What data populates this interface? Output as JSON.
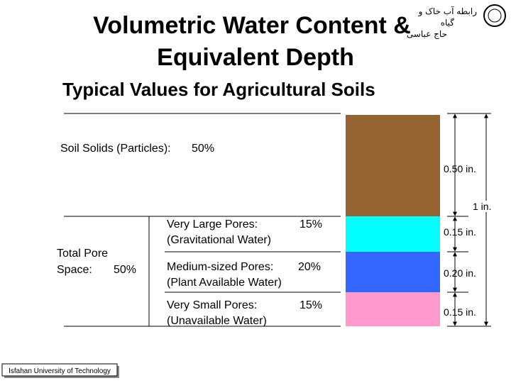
{
  "header": {
    "title_lines": [
      "Volumetric Water Content &",
      "Equivalent Depth"
    ],
    "subtitle": "Typical Values for Agricultural Soils",
    "persian_lines": [
      "رابطه آب خاک و",
      "گیاه",
      "حاج عباسی"
    ]
  },
  "solids": {
    "label": "Soil Solids (Particles):",
    "percent": "50%",
    "depth": "0.50 in."
  },
  "total_depth": "1 in.",
  "total_pore": {
    "label_lines": [
      "Total Pore",
      "Space:"
    ],
    "percent": "50%"
  },
  "pores": [
    {
      "name": "Very Large Pores:",
      "percent": "15%",
      "water": "(Gravitational Water)",
      "depth": "0.15 in."
    },
    {
      "name": "Medium-sized Pores:",
      "percent": "20%",
      "water": "(Plant Available Water)",
      "depth": "0.20 in."
    },
    {
      "name": "Very Small Pores:",
      "percent": "15%",
      "water": "(Unavailable Water)",
      "depth": "0.15 in."
    }
  ],
  "footer": "Isfahan University of Technology"
}
